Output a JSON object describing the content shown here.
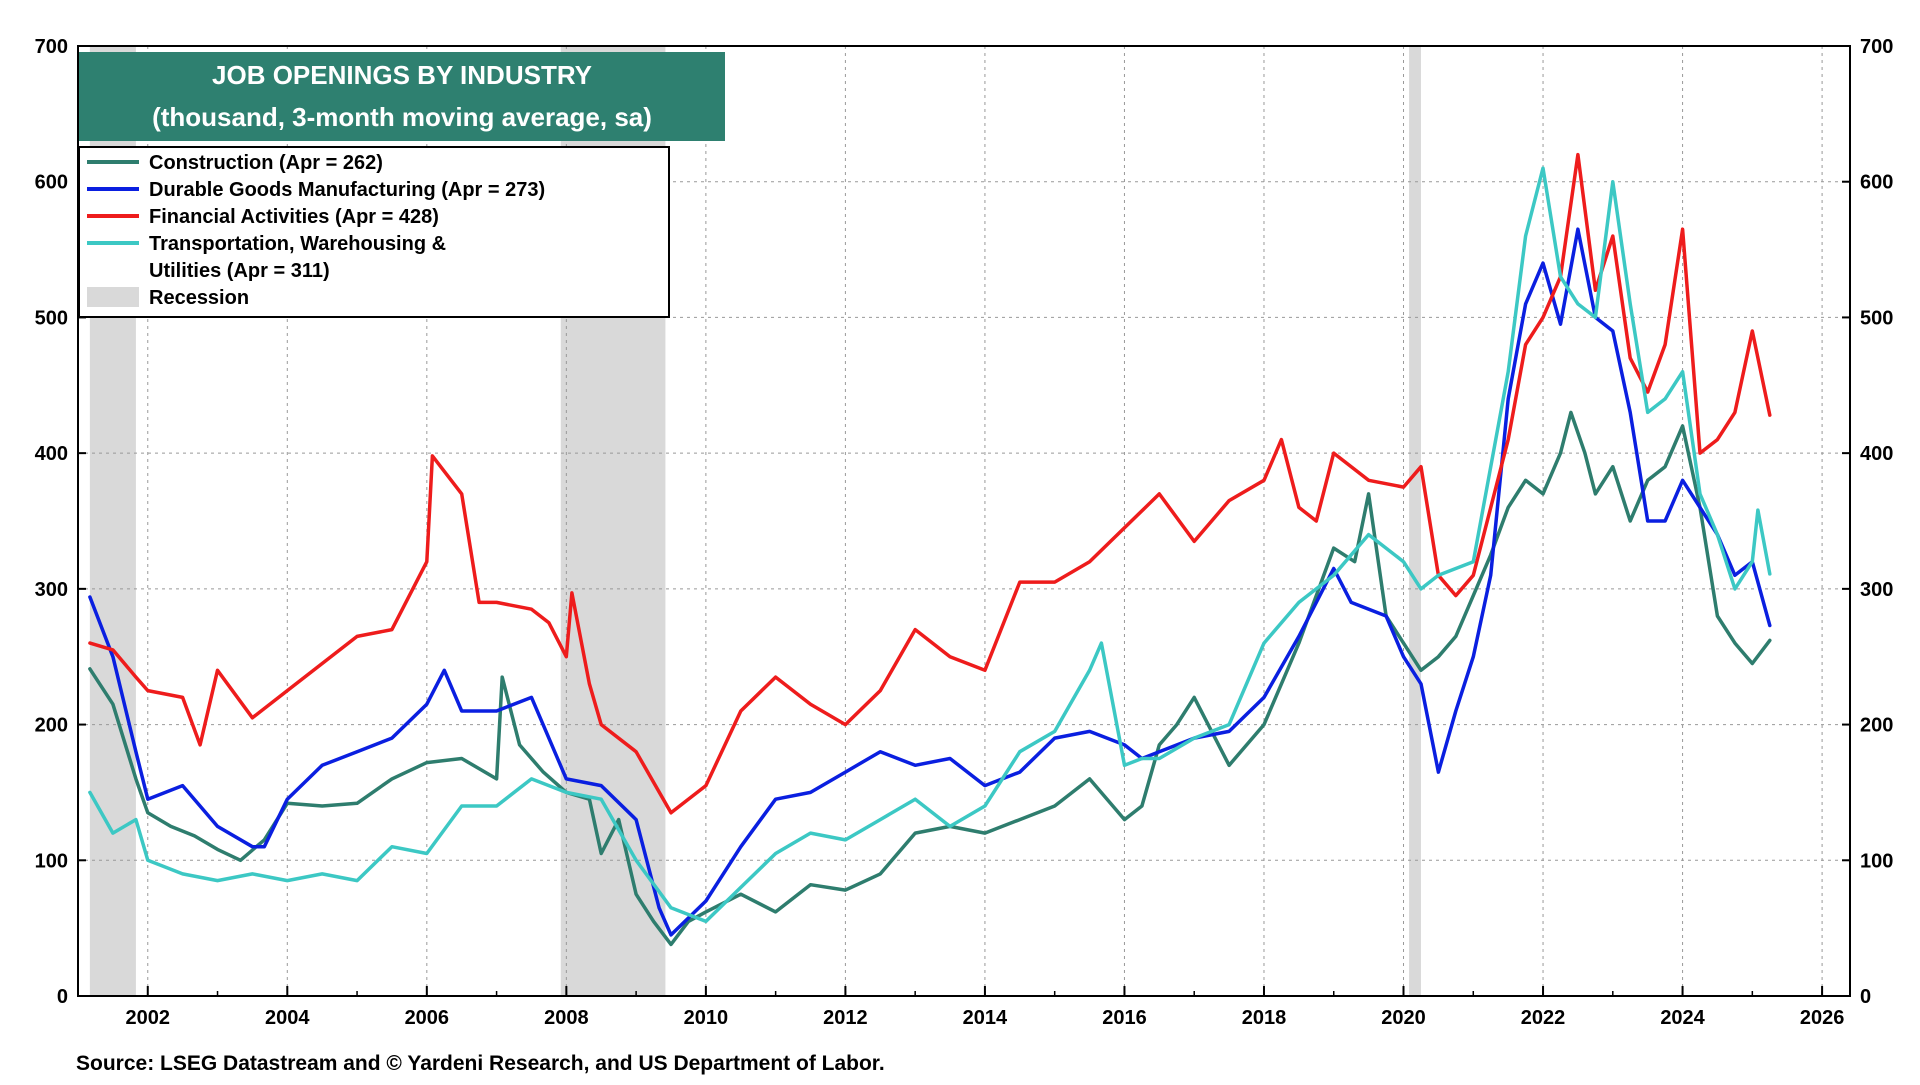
{
  "chart_data": {
    "type": "line",
    "title": "JOB OPENINGS BY INDUSTRY",
    "subtitle": "(thousand, 3-month moving average, sa)",
    "source": "Source: LSEG Datastream and © Yardeni Research, and US Department of Labor.",
    "xlim": [
      2001.0,
      2026.4
    ],
    "ylim": [
      0,
      700
    ],
    "x_ticks": [
      "2002",
      "2004",
      "2006",
      "2008",
      "2010",
      "2012",
      "2014",
      "2016",
      "2018",
      "2020",
      "2022",
      "2024",
      "2026"
    ],
    "y_ticks": [
      "0",
      "100",
      "200",
      "300",
      "400",
      "500",
      "600",
      "700"
    ],
    "grid": true,
    "legend_position": "top-left",
    "colors": {
      "title_bg": "#2e8070",
      "recession": "#d9d9d9",
      "grid": "#999999"
    },
    "legend": [
      {
        "label": "Construction (Apr = 262)",
        "color": "#2e7d6e",
        "kind": "line"
      },
      {
        "label": "Durable Goods Manufacturing (Apr = 273)",
        "color": "#0a1fe0",
        "kind": "line"
      },
      {
        "label": "Financial Activities (Apr = 428)",
        "color": "#ee1c1c",
        "kind": "line"
      },
      {
        "label": "Transportation, Warehousing &",
        "label2": "Utilities  (Apr = 311)",
        "color": "#3cc8c4",
        "kind": "line"
      },
      {
        "label": "Recession",
        "color": "#d9d9d9",
        "kind": "box"
      }
    ],
    "recessions": [
      [
        2001.17,
        2001.83
      ],
      [
        2007.92,
        2009.42
      ],
      [
        2020.08,
        2020.25
      ]
    ],
    "series": [
      {
        "name": "Construction (Apr = 262)",
        "color": "#2e7d6e",
        "x": [
          2001.17,
          2001.5,
          2001.83,
          2002.0,
          2002.33,
          2002.67,
          2003.0,
          2003.33,
          2003.67,
          2004.0,
          2004.5,
          2005.0,
          2005.5,
          2006.0,
          2006.5,
          2007.0,
          2007.08,
          2007.33,
          2007.67,
          2008.0,
          2008.33,
          2008.5,
          2008.75,
          2009.0,
          2009.25,
          2009.5,
          2009.75,
          2010.0,
          2010.5,
          2011.0,
          2011.5,
          2012.0,
          2012.5,
          2013.0,
          2013.5,
          2014.0,
          2014.5,
          2015.0,
          2015.5,
          2016.0,
          2016.25,
          2016.5,
          2016.75,
          2017.0,
          2017.5,
          2018.0,
          2018.5,
          2019.0,
          2019.3,
          2019.5,
          2019.75,
          2020.0,
          2020.25,
          2020.5,
          2020.75,
          2021.0,
          2021.25,
          2021.5,
          2021.75,
          2022.0,
          2022.25,
          2022.4,
          2022.6,
          2022.75,
          2023.0,
          2023.25,
          2023.5,
          2023.75,
          2024.0,
          2024.25,
          2024.5,
          2024.75,
          2025.0,
          2025.25
        ],
        "values": [
          241,
          215,
          160,
          135,
          125,
          118,
          108,
          100,
          115,
          142,
          140,
          142,
          160,
          172,
          175,
          160,
          235,
          185,
          165,
          150,
          145,
          105,
          130,
          75,
          55,
          38,
          55,
          62,
          75,
          62,
          82,
          78,
          90,
          120,
          125,
          120,
          130,
          140,
          160,
          130,
          140,
          185,
          200,
          220,
          170,
          200,
          260,
          330,
          320,
          370,
          280,
          260,
          240,
          250,
          265,
          295,
          325,
          360,
          380,
          370,
          400,
          430,
          400,
          370,
          390,
          350,
          380,
          390,
          420,
          360,
          280,
          260,
          245,
          262
        ]
      },
      {
        "name": "Durable Goods Manufacturing (Apr = 273)",
        "color": "#0a1fe0",
        "x": [
          2001.17,
          2001.5,
          2001.83,
          2002.0,
          2002.5,
          2003.0,
          2003.5,
          2003.67,
          2004.0,
          2004.5,
          2005.0,
          2005.5,
          2006.0,
          2006.25,
          2006.5,
          2007.0,
          2007.5,
          2008.0,
          2008.5,
          2009.0,
          2009.33,
          2009.5,
          2010.0,
          2010.5,
          2011.0,
          2011.5,
          2012.0,
          2012.5,
          2013.0,
          2013.5,
          2014.0,
          2014.5,
          2015.0,
          2015.5,
          2016.0,
          2016.25,
          2016.5,
          2017.0,
          2017.5,
          2018.0,
          2018.5,
          2019.0,
          2019.25,
          2019.75,
          2020.0,
          2020.25,
          2020.5,
          2020.75,
          2021.0,
          2021.25,
          2021.5,
          2021.75,
          2022.0,
          2022.25,
          2022.5,
          2022.75,
          2023.0,
          2023.25,
          2023.5,
          2023.75,
          2024.0,
          2024.25,
          2024.5,
          2024.75,
          2025.0,
          2025.25
        ],
        "values": [
          294,
          250,
          180,
          145,
          155,
          125,
          110,
          110,
          145,
          170,
          180,
          190,
          215,
          240,
          210,
          210,
          220,
          160,
          155,
          130,
          65,
          45,
          70,
          110,
          145,
          150,
          165,
          180,
          170,
          175,
          155,
          165,
          190,
          195,
          185,
          175,
          180,
          190,
          195,
          220,
          265,
          315,
          290,
          280,
          250,
          230,
          165,
          210,
          250,
          310,
          440,
          510,
          540,
          495,
          565,
          500,
          490,
          430,
          350,
          350,
          380,
          360,
          340,
          310,
          320,
          273
        ]
      },
      {
        "name": "Financial Activities (Apr = 428)",
        "color": "#ee1c1c",
        "x": [
          2001.17,
          2001.5,
          2001.83,
          2002.0,
          2002.5,
          2002.75,
          2003.0,
          2003.5,
          2004.0,
          2004.5,
          2005.0,
          2005.5,
          2006.0,
          2006.08,
          2006.5,
          2006.75,
          2007.0,
          2007.5,
          2007.75,
          2008.0,
          2008.08,
          2008.33,
          2008.5,
          2009.0,
          2009.5,
          2010.0,
          2010.5,
          2011.0,
          2011.5,
          2012.0,
          2012.5,
          2013.0,
          2013.5,
          2014.0,
          2014.5,
          2015.0,
          2015.5,
          2016.0,
          2016.5,
          2017.0,
          2017.5,
          2018.0,
          2018.25,
          2018.5,
          2018.75,
          2019.0,
          2019.5,
          2020.0,
          2020.25,
          2020.5,
          2020.75,
          2021.0,
          2021.5,
          2021.75,
          2022.0,
          2022.25,
          2022.5,
          2022.75,
          2023.0,
          2023.25,
          2023.5,
          2023.75,
          2024.0,
          2024.25,
          2024.5,
          2024.75,
          2025.0,
          2025.25
        ],
        "values": [
          260,
          255,
          235,
          225,
          220,
          185,
          240,
          205,
          225,
          245,
          265,
          270,
          320,
          398,
          370,
          290,
          290,
          285,
          275,
          250,
          297,
          230,
          200,
          180,
          135,
          155,
          210,
          235,
          215,
          200,
          225,
          270,
          250,
          240,
          305,
          305,
          320,
          345,
          370,
          335,
          365,
          380,
          410,
          360,
          350,
          400,
          380,
          375,
          390,
          310,
          295,
          310,
          410,
          480,
          500,
          530,
          620,
          520,
          560,
          470,
          445,
          480,
          565,
          400,
          410,
          430,
          490,
          428
        ]
      },
      {
        "name": "Transportation, Warehousing & Utilities  (Apr = 311)",
        "color": "#3cc8c4",
        "x": [
          2001.17,
          2001.5,
          2001.83,
          2002.0,
          2002.5,
          2003.0,
          2003.5,
          2004.0,
          2004.5,
          2005.0,
          2005.5,
          2006.0,
          2006.5,
          2007.0,
          2007.5,
          2008.0,
          2008.5,
          2009.0,
          2009.5,
          2010.0,
          2010.5,
          2011.0,
          2011.5,
          2012.0,
          2012.5,
          2013.0,
          2013.5,
          2014.0,
          2014.5,
          2015.0,
          2015.5,
          2015.67,
          2016.0,
          2016.25,
          2016.5,
          2017.0,
          2017.5,
          2018.0,
          2018.5,
          2019.0,
          2019.5,
          2020.0,
          2020.25,
          2020.5,
          2020.75,
          2021.0,
          2021.5,
          2021.75,
          2022.0,
          2022.25,
          2022.5,
          2022.75,
          2023.0,
          2023.25,
          2023.5,
          2023.75,
          2024.0,
          2024.25,
          2024.5,
          2024.75,
          2025.0,
          2025.08,
          2025.25
        ],
        "values": [
          150,
          120,
          130,
          100,
          90,
          85,
          90,
          85,
          90,
          85,
          110,
          105,
          140,
          140,
          160,
          150,
          145,
          100,
          65,
          55,
          80,
          105,
          120,
          115,
          130,
          145,
          125,
          140,
          180,
          195,
          240,
          260,
          170,
          175,
          175,
          190,
          200,
          260,
          290,
          310,
          340,
          320,
          300,
          310,
          315,
          320,
          460,
          560,
          610,
          530,
          510,
          500,
          600,
          510,
          430,
          440,
          460,
          370,
          340,
          300,
          320,
          358,
          311
        ]
      }
    ]
  }
}
